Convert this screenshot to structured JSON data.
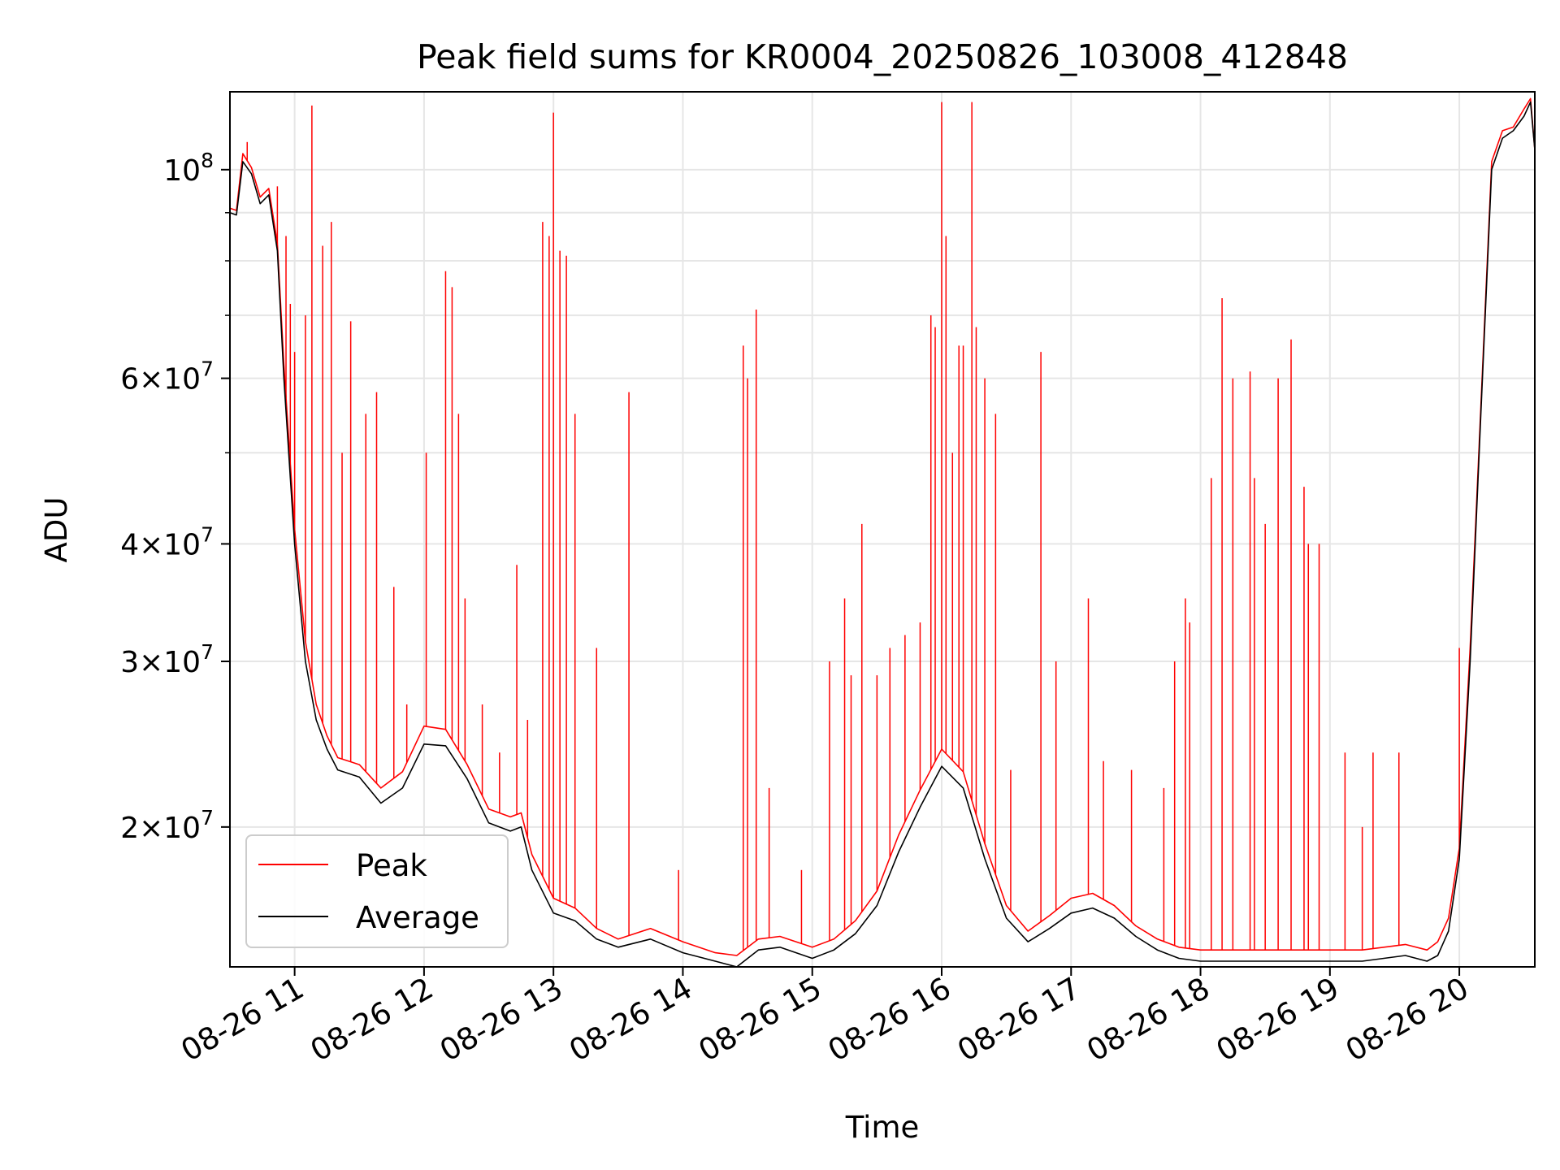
{
  "chart_data": {
    "type": "line",
    "title": "Peak field sums for KR0004_20250826_103008_412848",
    "xlabel": "Time",
    "ylabel": "ADU",
    "yscale": "log",
    "xlim": [
      "2025-08-26 10:30",
      "2025-08-26 20:35"
    ],
    "ylim": [
      14200000,
      121000000
    ],
    "grid": true,
    "legend_position": "lower-left",
    "x_ticks": [
      {
        "t": "2025-08-26 11:00",
        "label": "08-26 11"
      },
      {
        "t": "2025-08-26 12:00",
        "label": "08-26 12"
      },
      {
        "t": "2025-08-26 13:00",
        "label": "08-26 13"
      },
      {
        "t": "2025-08-26 14:00",
        "label": "08-26 14"
      },
      {
        "t": "2025-08-26 15:00",
        "label": "08-26 15"
      },
      {
        "t": "2025-08-26 16:00",
        "label": "08-26 16"
      },
      {
        "t": "2025-08-26 17:00",
        "label": "08-26 17"
      },
      {
        "t": "2025-08-26 18:00",
        "label": "08-26 18"
      },
      {
        "t": "2025-08-26 19:00",
        "label": "08-26 19"
      },
      {
        "t": "2025-08-26 20:00",
        "label": "08-26 20"
      }
    ],
    "y_ticks": [
      {
        "v": 20000000,
        "base": "2",
        "exp": "7"
      },
      {
        "v": 30000000,
        "base": "3",
        "exp": "7"
      },
      {
        "v": 40000000,
        "base": "4",
        "exp": "7"
      },
      {
        "v": 60000000,
        "base": "6",
        "exp": "7"
      },
      {
        "v": 100000000,
        "base": "10",
        "exp": "8"
      }
    ],
    "y_minor_ticks": [
      50000000,
      70000000,
      80000000,
      90000000
    ],
    "series": [
      {
        "name": "Average",
        "color": "#000000",
        "x": [
          "2025-08-26 10:30",
          "2025-08-26 10:33",
          "2025-08-26 10:36",
          "2025-08-26 10:40",
          "2025-08-26 10:44",
          "2025-08-26 10:48",
          "2025-08-26 10:52",
          "2025-08-26 10:55",
          "2025-08-26 11:00",
          "2025-08-26 11:05",
          "2025-08-26 11:10",
          "2025-08-26 11:15",
          "2025-08-26 11:20",
          "2025-08-26 11:25",
          "2025-08-26 11:30",
          "2025-08-26 11:40",
          "2025-08-26 11:50",
          "2025-08-26 12:00",
          "2025-08-26 12:10",
          "2025-08-26 12:20",
          "2025-08-26 12:30",
          "2025-08-26 12:40",
          "2025-08-26 12:45",
          "2025-08-26 12:50",
          "2025-08-26 13:00",
          "2025-08-26 13:10",
          "2025-08-26 13:20",
          "2025-08-26 13:30",
          "2025-08-26 13:45",
          "2025-08-26 14:00",
          "2025-08-26 14:15",
          "2025-08-26 14:25",
          "2025-08-26 14:35",
          "2025-08-26 14:45",
          "2025-08-26 15:00",
          "2025-08-26 15:10",
          "2025-08-26 15:20",
          "2025-08-26 15:30",
          "2025-08-26 15:40",
          "2025-08-26 15:50",
          "2025-08-26 16:00",
          "2025-08-26 16:10",
          "2025-08-26 16:20",
          "2025-08-26 16:30",
          "2025-08-26 16:40",
          "2025-08-26 16:50",
          "2025-08-26 17:00",
          "2025-08-26 17:10",
          "2025-08-26 17:20",
          "2025-08-26 17:30",
          "2025-08-26 17:40",
          "2025-08-26 17:50",
          "2025-08-26 18:00",
          "2025-08-26 18:15",
          "2025-08-26 18:30",
          "2025-08-26 18:45",
          "2025-08-26 19:00",
          "2025-08-26 19:15",
          "2025-08-26 19:25",
          "2025-08-26 19:35",
          "2025-08-26 19:45",
          "2025-08-26 19:50",
          "2025-08-26 19:55",
          "2025-08-26 20:00",
          "2025-08-26 20:05",
          "2025-08-26 20:10",
          "2025-08-26 20:15",
          "2025-08-26 20:20",
          "2025-08-26 20:25",
          "2025-08-26 20:30",
          "2025-08-26 20:33",
          "2025-08-26 20:35"
        ],
        "y": [
          90000000,
          89500000,
          102000000,
          99000000,
          92000000,
          94000000,
          82000000,
          60000000,
          40000000,
          30000000,
          26000000,
          24200000,
          23000000,
          22800000,
          22600000,
          21200000,
          22000000,
          24500000,
          24400000,
          22500000,
          20200000,
          19800000,
          20000000,
          18000000,
          16200000,
          15900000,
          15200000,
          14900000,
          15200000,
          14700000,
          14400000,
          14200000,
          14800000,
          14900000,
          14500000,
          14800000,
          15400000,
          16500000,
          18800000,
          21000000,
          23200000,
          22000000,
          18500000,
          16000000,
          15100000,
          15600000,
          16200000,
          16400000,
          16000000,
          15300000,
          14800000,
          14500000,
          14400000,
          14400000,
          14400000,
          14400000,
          14400000,
          14400000,
          14500000,
          14600000,
          14400000,
          14600000,
          15500000,
          18500000,
          30000000,
          55000000,
          100000000,
          108000000,
          110000000,
          114000000,
          118000000,
          105000000
        ]
      },
      {
        "name": "Peak",
        "color": "#ff0000",
        "x": [
          "2025-08-26 10:30",
          "2025-08-26 10:33",
          "2025-08-26 10:36",
          "2025-08-26 10:40",
          "2025-08-26 10:44",
          "2025-08-26 10:48",
          "2025-08-26 10:52",
          "2025-08-26 10:55",
          "2025-08-26 11:00",
          "2025-08-26 11:05",
          "2025-08-26 11:10",
          "2025-08-26 11:15",
          "2025-08-26 11:20",
          "2025-08-26 11:25",
          "2025-08-26 11:30",
          "2025-08-26 11:40",
          "2025-08-26 11:50",
          "2025-08-26 12:00",
          "2025-08-26 12:10",
          "2025-08-26 12:20",
          "2025-08-26 12:30",
          "2025-08-26 12:40",
          "2025-08-26 12:45",
          "2025-08-26 12:50",
          "2025-08-26 13:00",
          "2025-08-26 13:10",
          "2025-08-26 13:20",
          "2025-08-26 13:30",
          "2025-08-26 13:45",
          "2025-08-26 14:00",
          "2025-08-26 14:15",
          "2025-08-26 14:25",
          "2025-08-26 14:35",
          "2025-08-26 14:45",
          "2025-08-26 15:00",
          "2025-08-26 15:10",
          "2025-08-26 15:20",
          "2025-08-26 15:30",
          "2025-08-26 15:40",
          "2025-08-26 15:50",
          "2025-08-26 16:00",
          "2025-08-26 16:10",
          "2025-08-26 16:20",
          "2025-08-26 16:30",
          "2025-08-26 16:40",
          "2025-08-26 16:50",
          "2025-08-26 17:00",
          "2025-08-26 17:10",
          "2025-08-26 17:20",
          "2025-08-26 17:30",
          "2025-08-26 17:40",
          "2025-08-26 17:50",
          "2025-08-26 18:00",
          "2025-08-26 18:15",
          "2025-08-26 18:30",
          "2025-08-26 18:45",
          "2025-08-26 19:00",
          "2025-08-26 19:15",
          "2025-08-26 19:25",
          "2025-08-26 19:35",
          "2025-08-26 19:45",
          "2025-08-26 19:50",
          "2025-08-26 19:55",
          "2025-08-26 20:00",
          "2025-08-26 20:05",
          "2025-08-26 20:10",
          "2025-08-26 20:15",
          "2025-08-26 20:20",
          "2025-08-26 20:25",
          "2025-08-26 20:30",
          "2025-08-26 20:33",
          "2025-08-26 20:35"
        ],
        "y": [
          91000000,
          90500000,
          104000000,
          100500000,
          93500000,
          95500000,
          83500000,
          62000000,
          41500000,
          31500000,
          27000000,
          25000000,
          23700000,
          23500000,
          23300000,
          22000000,
          22900000,
          25600000,
          25400000,
          23300000,
          20900000,
          20500000,
          20700000,
          18700000,
          16800000,
          16400000,
          15600000,
          15200000,
          15600000,
          15100000,
          14700000,
          14600000,
          15200000,
          15300000,
          14900000,
          15200000,
          15900000,
          17100000,
          19600000,
          21900000,
          24200000,
          22900000,
          19200000,
          16500000,
          15500000,
          16100000,
          16800000,
          17000000,
          16500000,
          15700000,
          15200000,
          14900000,
          14800000,
          14800000,
          14800000,
          14800000,
          14800000,
          14800000,
          14900000,
          15000000,
          14800000,
          15100000,
          16000000,
          19000000,
          31000000,
          56000000,
          102000000,
          110000000,
          111000000,
          116000000,
          119000000,
          105000000
        ]
      }
    ],
    "peak_spikes": {
      "x": [
        "2025-08-26 10:38",
        "2025-08-26 10:52",
        "2025-08-26 10:56",
        "2025-08-26 10:58",
        "2025-08-26 11:00",
        "2025-08-26 11:05",
        "2025-08-26 11:08",
        "2025-08-26 11:13",
        "2025-08-26 11:17",
        "2025-08-26 11:22",
        "2025-08-26 11:26",
        "2025-08-26 11:33",
        "2025-08-26 11:38",
        "2025-08-26 11:46",
        "2025-08-26 11:52",
        "2025-08-26 12:01",
        "2025-08-26 12:10",
        "2025-08-26 12:13",
        "2025-08-26 12:16",
        "2025-08-26 12:19",
        "2025-08-26 12:27",
        "2025-08-26 12:35",
        "2025-08-26 12:43",
        "2025-08-26 12:48",
        "2025-08-26 12:55",
        "2025-08-26 12:58",
        "2025-08-26 13:00",
        "2025-08-26 13:03",
        "2025-08-26 13:06",
        "2025-08-26 13:10",
        "2025-08-26 13:20",
        "2025-08-26 13:35",
        "2025-08-26 13:58",
        "2025-08-26 14:28",
        "2025-08-26 14:30",
        "2025-08-26 14:34",
        "2025-08-26 14:40",
        "2025-08-26 14:55",
        "2025-08-26 15:08",
        "2025-08-26 15:15",
        "2025-08-26 15:18",
        "2025-08-26 15:23",
        "2025-08-26 15:30",
        "2025-08-26 15:36",
        "2025-08-26 15:43",
        "2025-08-26 15:50",
        "2025-08-26 15:55",
        "2025-08-26 15:57",
        "2025-08-26 16:00",
        "2025-08-26 16:02",
        "2025-08-26 16:05",
        "2025-08-26 16:08",
        "2025-08-26 16:10",
        "2025-08-26 16:14",
        "2025-08-26 16:16",
        "2025-08-26 16:20",
        "2025-08-26 16:25",
        "2025-08-26 16:32",
        "2025-08-26 16:46",
        "2025-08-26 16:53",
        "2025-08-26 17:08",
        "2025-08-26 17:15",
        "2025-08-26 17:28",
        "2025-08-26 17:43",
        "2025-08-26 17:48",
        "2025-08-26 17:53",
        "2025-08-26 17:55",
        "2025-08-26 18:05",
        "2025-08-26 18:10",
        "2025-08-26 18:15",
        "2025-08-26 18:23",
        "2025-08-26 18:25",
        "2025-08-26 18:30",
        "2025-08-26 18:36",
        "2025-08-26 18:42",
        "2025-08-26 18:48",
        "2025-08-26 18:50",
        "2025-08-26 18:55",
        "2025-08-26 19:07",
        "2025-08-26 19:15",
        "2025-08-26 19:20",
        "2025-08-26 19:32",
        "2025-08-26 20:00"
      ],
      "y": [
        107000000,
        96000000,
        85000000,
        72000000,
        64000000,
        70000000,
        117000000,
        83000000,
        88000000,
        50000000,
        69000000,
        55000000,
        58000000,
        36000000,
        27000000,
        50000000,
        78000000,
        75000000,
        55000000,
        35000000,
        27000000,
        24000000,
        38000000,
        26000000,
        88000000,
        85000000,
        115000000,
        82000000,
        81000000,
        55000000,
        31000000,
        58000000,
        18000000,
        65000000,
        60000000,
        71000000,
        22000000,
        18000000,
        30000000,
        35000000,
        29000000,
        42000000,
        29000000,
        31000000,
        32000000,
        33000000,
        70000000,
        68000000,
        118000000,
        85000000,
        50000000,
        65000000,
        65000000,
        118000000,
        68000000,
        60000000,
        55000000,
        23000000,
        64000000,
        30000000,
        35000000,
        23500000,
        23000000,
        22000000,
        30000000,
        35000000,
        33000000,
        47000000,
        73000000,
        60000000,
        61000000,
        47000000,
        42000000,
        60000000,
        66000000,
        46000000,
        40000000,
        40000000,
        24000000,
        20000000,
        24000000,
        24000000,
        31000000
      ]
    }
  }
}
